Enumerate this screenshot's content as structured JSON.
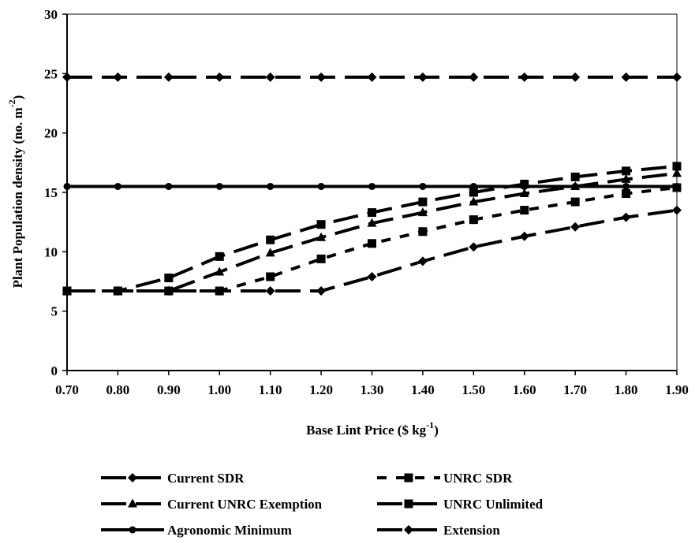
{
  "chart_data": {
    "type": "line",
    "title": "",
    "xlabel": {
      "main": "Base Lint Price ($ kg",
      "sup": "-1",
      "end": ")"
    },
    "ylabel": {
      "main": "Plant Population density (no. m",
      "sup": "-2",
      "end": ")"
    },
    "x": [
      0.7,
      0.8,
      0.9,
      1.0,
      1.1,
      1.2,
      1.3,
      1.4,
      1.5,
      1.6,
      1.7,
      1.8,
      1.9
    ],
    "x_tick_labels": [
      "0.70",
      "0.80",
      "0.90",
      "1.00",
      "1.10",
      "1.20",
      "1.30",
      "1.40",
      "1.50",
      "1.60",
      "1.70",
      "1.80",
      "1.90"
    ],
    "ylim": [
      0,
      30
    ],
    "y_ticks": [
      0,
      5,
      10,
      15,
      20,
      25,
      30
    ],
    "y_tick_labels": [
      "0",
      "5",
      "10",
      "15",
      "20",
      "25",
      "30"
    ],
    "grid": false,
    "legend_position": "bottom",
    "series": [
      {
        "name": "Current SDR",
        "marker": "diamond",
        "dash": "long-dash",
        "values": [
          6.7,
          6.7,
          6.7,
          6.7,
          6.7,
          6.7,
          7.9,
          9.2,
          10.4,
          11.3,
          12.1,
          12.9,
          13.5
        ]
      },
      {
        "name": "UNRC  SDR",
        "marker": "square",
        "dash": "short-dash",
        "values": [
          6.7,
          6.7,
          6.7,
          6.7,
          7.9,
          9.4,
          10.7,
          11.7,
          12.7,
          13.5,
          14.2,
          14.9,
          15.4
        ]
      },
      {
        "name": "Current UNRC Exemption",
        "marker": "triangle",
        "dash": "long-dash",
        "values": [
          6.7,
          6.7,
          6.7,
          8.3,
          9.9,
          11.2,
          12.4,
          13.3,
          14.2,
          14.9,
          15.5,
          16.1,
          16.6
        ]
      },
      {
        "name": "UNRC Unlimited",
        "marker": "square",
        "dash": "long-dash",
        "values": [
          6.7,
          6.7,
          7.8,
          9.6,
          11.0,
          12.3,
          13.3,
          14.2,
          15.0,
          15.7,
          16.3,
          16.8,
          17.2
        ]
      },
      {
        "name": "Agronomic Minimum",
        "marker": "circle",
        "dash": "solid",
        "values": [
          15.5,
          15.5,
          15.5,
          15.5,
          15.5,
          15.5,
          15.5,
          15.5,
          15.5,
          15.5,
          15.5,
          15.5,
          15.5
        ]
      },
      {
        "name": "Extension",
        "marker": "diamond",
        "dash": "long-dash",
        "values": [
          24.7,
          24.7,
          24.7,
          24.7,
          24.7,
          24.7,
          24.7,
          24.7,
          24.7,
          24.7,
          24.7,
          24.7,
          24.7
        ]
      }
    ]
  }
}
